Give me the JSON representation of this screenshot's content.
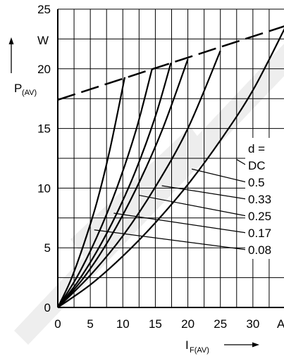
{
  "chart_data": {
    "type": "line",
    "title": "",
    "xlabel": "I",
    "xlabel_sub": "F(AV)",
    "xunit": "A",
    "ylabel": "P",
    "ylabel_sub": "(AV)",
    "yunit": "W",
    "xlim": [
      0,
      35
    ],
    "ylim": [
      0,
      25
    ],
    "grid": true,
    "x_ticks": [
      0,
      5,
      10,
      15,
      20,
      25,
      30
    ],
    "y_ticks": [
      0,
      5,
      10,
      15,
      20,
      25
    ],
    "legend_title": "d =",
    "duty_labels": [
      "DC",
      "0.5",
      "0.33",
      "0.25",
      "0.17",
      "0.08"
    ],
    "series": [
      {
        "name": "0.08",
        "x": [
          0,
          2,
          4,
          6,
          8,
          10.3
        ],
        "y": [
          0,
          2.3,
          5.3,
          8.8,
          13.2,
          19.3
        ]
      },
      {
        "name": "0.17",
        "x": [
          0,
          3,
          6,
          9,
          12,
          14.5
        ],
        "y": [
          0,
          2.6,
          5.9,
          9.9,
          14.8,
          20.0
        ]
      },
      {
        "name": "0.25",
        "x": [
          0,
          3,
          6,
          9,
          12,
          15,
          17.4
        ],
        "y": [
          0,
          2.1,
          4.7,
          7.8,
          11.5,
          16.0,
          20.5
        ]
      },
      {
        "name": "0.33",
        "x": [
          0,
          4,
          8,
          12,
          16,
          20
        ],
        "y": [
          0,
          2.5,
          5.8,
          9.9,
          14.8,
          20.8
        ]
      },
      {
        "name": "0.5",
        "x": [
          0,
          5,
          10,
          15,
          20,
          25
        ],
        "y": [
          0,
          2.7,
          6.0,
          10.1,
          15.0,
          21.5
        ]
      },
      {
        "name": "DC",
        "x": [
          0,
          5,
          10,
          15,
          20,
          25,
          30,
          35
        ],
        "y": [
          0,
          1.9,
          4.3,
          7.1,
          10.3,
          14.0,
          18.2,
          23.5
        ]
      }
    ],
    "limit_line": {
      "x": [
        0,
        35
      ],
      "y": [
        17.4,
        23.6
      ]
    }
  }
}
